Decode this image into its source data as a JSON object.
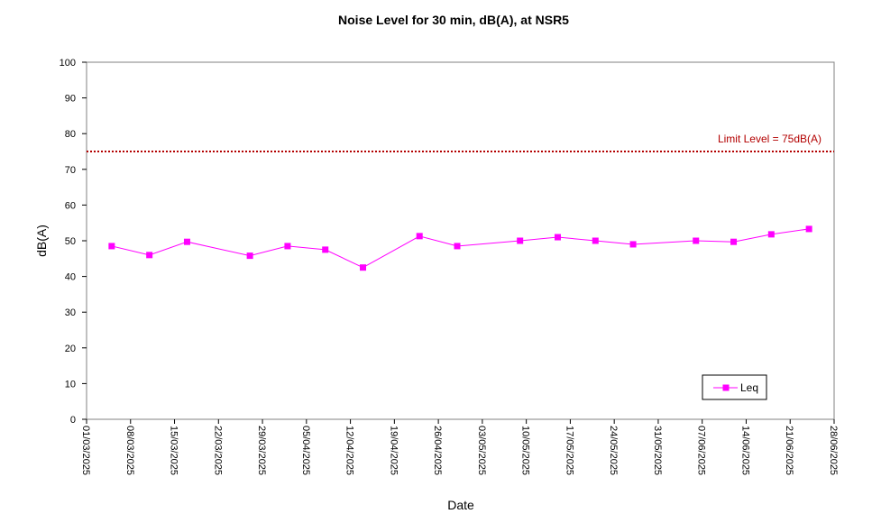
{
  "chart_data": {
    "type": "line",
    "title": "Noise Level for 30 min, dB(A), at NSR5",
    "xlabel": "Date",
    "ylabel": "dB(A)",
    "ylim": [
      0,
      100
    ],
    "yticks": [
      0,
      10,
      20,
      30,
      40,
      50,
      60,
      70,
      80,
      90,
      100
    ],
    "xlim": [
      "2025-03-01",
      "2025-06-28"
    ],
    "xticks": [
      "01/03/2025",
      "08/03/2025",
      "15/03/2025",
      "22/03/2025",
      "29/03/2025",
      "05/04/2025",
      "12/04/2025",
      "19/04/2025",
      "26/04/2025",
      "03/05/2025",
      "10/05/2025",
      "17/05/2025",
      "24/05/2025",
      "31/05/2025",
      "07/06/2025",
      "14/06/2025",
      "21/06/2025",
      "28/06/2025"
    ],
    "grid": false,
    "series": [
      {
        "name": "Leq",
        "color": "#ff00ff",
        "marker": "square",
        "points": [
          {
            "x": "2025-03-05",
            "y": 48.5
          },
          {
            "x": "2025-03-11",
            "y": 46.0
          },
          {
            "x": "2025-03-17",
            "y": 49.7
          },
          {
            "x": "2025-03-27",
            "y": 45.8
          },
          {
            "x": "2025-04-02",
            "y": 48.5
          },
          {
            "x": "2025-04-08",
            "y": 47.5
          },
          {
            "x": "2025-04-14",
            "y": 42.5
          },
          {
            "x": "2025-04-23",
            "y": 51.3
          },
          {
            "x": "2025-04-29",
            "y": 48.5
          },
          {
            "x": "2025-05-09",
            "y": 50.0
          },
          {
            "x": "2025-05-15",
            "y": 51.0
          },
          {
            "x": "2025-05-21",
            "y": 50.0
          },
          {
            "x": "2025-05-27",
            "y": 49.0
          },
          {
            "x": "2025-06-06",
            "y": 50.0
          },
          {
            "x": "2025-06-12",
            "y": 49.7
          },
          {
            "x": "2025-06-18",
            "y": 51.8
          },
          {
            "x": "2025-06-24",
            "y": 53.3
          }
        ]
      }
    ],
    "limit": {
      "value": 75,
      "label": "Limit Level  = 75dB(A)",
      "color": "#b30000",
      "style": "dotted"
    },
    "legend": {
      "position": "bottom-right",
      "entries": [
        "Leq"
      ]
    }
  }
}
